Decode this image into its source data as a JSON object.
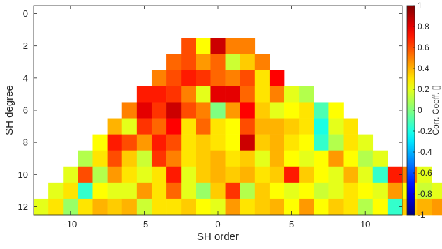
{
  "chart_data": {
    "type": "heatmap",
    "title": "",
    "xlabel": "SH order",
    "ylabel": "SH degree",
    "x_ticks": [
      -10,
      -5,
      0,
      5,
      10
    ],
    "y_ticks": [
      0,
      2,
      4,
      6,
      8,
      10,
      12
    ],
    "xlim": [
      -12.5,
      12.5
    ],
    "ylim": [
      -0.5,
      12.5
    ],
    "y_direction": "reversed",
    "colormap": "jet",
    "colorbar": {
      "label": "Corr. Coeff. []",
      "range": [
        -1,
        1
      ],
      "ticks": [
        "1",
        "0.8",
        "0.6",
        "0.4",
        "0.2",
        "0",
        "-0.2",
        "-0.4",
        "-0.6",
        "-0.8",
        "-1"
      ],
      "position": "right"
    },
    "grid": false,
    "background_color": "#ffffff",
    "rows": [
      {
        "degree": 0,
        "values": [
          null
        ]
      },
      {
        "degree": 1,
        "values": [
          null,
          null,
          null
        ]
      },
      {
        "degree": 2,
        "values": [
          0.6,
          0.25,
          0.85,
          0.5,
          0.5
        ]
      },
      {
        "degree": 3,
        "values": [
          0.55,
          0.6,
          0.45,
          0.55,
          0.15,
          0.35,
          0.5
        ]
      },
      {
        "degree": 4,
        "values": [
          0.5,
          0.6,
          0.7,
          0.65,
          0.55,
          0.5,
          0.6,
          0.3,
          0.75
        ]
      },
      {
        "degree": 5,
        "values": [
          0.7,
          0.7,
          0.65,
          0.5,
          0.2,
          0.8,
          0.8,
          0.55,
          0.3,
          0.5,
          0.2,
          0.1
        ]
      },
      {
        "degree": 6,
        "values": [
          0.5,
          0.8,
          0.65,
          0.85,
          0.6,
          0.5,
          0.0,
          0.45,
          0.75,
          0.35,
          0.2,
          0.25,
          0.3,
          -0.1,
          0.25
        ]
      },
      {
        "degree": 7,
        "values": [
          0.4,
          0.2,
          0.65,
          0.55,
          0.75,
          0.3,
          0.55,
          0.3,
          0.25,
          0.6,
          0.4,
          0.4,
          0.35,
          0.3,
          -0.2,
          0.2,
          0.3
        ]
      },
      {
        "degree": 8,
        "values": [
          0.25,
          0.7,
          0.6,
          0.45,
          0.7,
          0.6,
          0.3,
          0.35,
          0.3,
          0.25,
          0.85,
          0.35,
          0.4,
          0.3,
          0.25,
          -0.15,
          0.1,
          0.3,
          0.2
        ]
      },
      {
        "degree": 9,
        "values": [
          0.1,
          0.3,
          0.6,
          0.35,
          0.15,
          0.65,
          0.5,
          0.3,
          0.35,
          0.4,
          0.3,
          0.35,
          0.2,
          0.4,
          0.25,
          0.2,
          0.25,
          0.45,
          0.25,
          0.1,
          0.2
        ]
      },
      {
        "degree": 10,
        "values": [
          0.2,
          0.6,
          0.1,
          0.45,
          0.3,
          0.2,
          0.3,
          0.7,
          0.2,
          0.35,
          0.4,
          0.35,
          0.4,
          0.3,
          0.35,
          0.7,
          0.35,
          0.25,
          0.2,
          0.4,
          0.2,
          -0.15,
          0.7,
          0.5,
          0.2
        ]
      },
      {
        "degree": 11,
        "values": [
          0.2,
          0.3,
          -0.15,
          0.25,
          0.2,
          0.2,
          0.45,
          0.3,
          0.55,
          0.2,
          0.05,
          0.35,
          0.65,
          0.1,
          0.35,
          0.25,
          0.2,
          0.25,
          0.15,
          0.2,
          0.3,
          0.25,
          0.2,
          0.45,
          0.25,
          0.15,
          0.2
        ]
      },
      {
        "degree": 12,
        "values": [
          0.2,
          0.3,
          0.05,
          0.3,
          0.4,
          0.35,
          0.4,
          0.15,
          0.3,
          0.3,
          0.35,
          0.25,
          0.2,
          0.45,
          0.3,
          0.35,
          0.4,
          0.25,
          0.45,
          0.25,
          0.35,
          0.3,
          0.1,
          0.25,
          -0.15,
          0.35,
          0.4,
          0.45
        ]
      }
    ]
  }
}
